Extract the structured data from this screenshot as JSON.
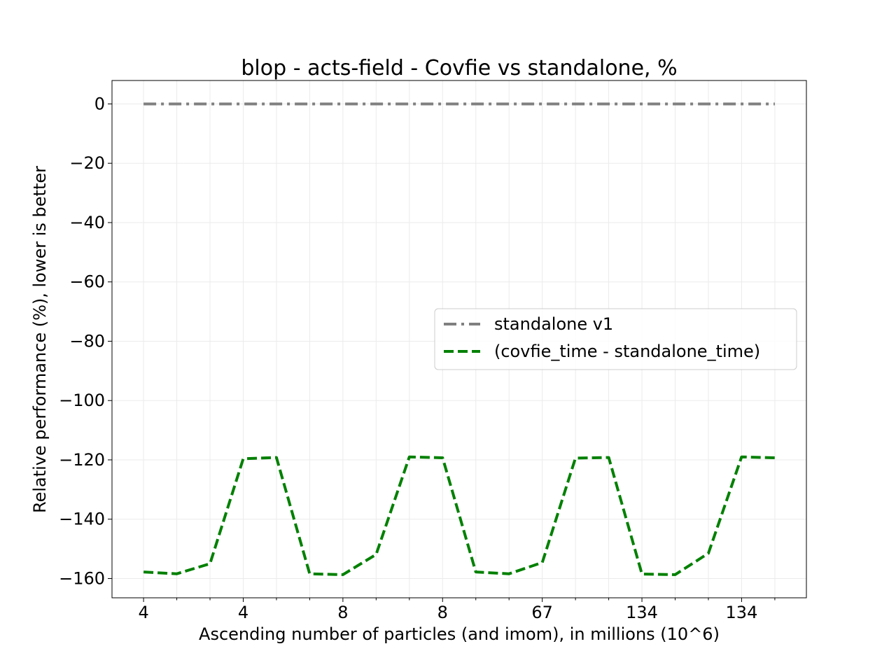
{
  "chart_data": {
    "type": "line",
    "title": "blop - acts-field - Covfie vs standalone, %",
    "xlabel": "Ascending number of particles (and imom), in millions (10^6)",
    "ylabel": "Relative performance (%), lower is better",
    "x_tick_labels": [
      "4",
      "4",
      "8",
      "8",
      "67",
      "134",
      "134"
    ],
    "x_tick_positions": [
      0,
      3,
      6,
      9,
      12,
      15,
      18
    ],
    "x_minor_tick_positions": [
      1,
      2,
      4,
      5,
      7,
      8,
      10,
      11,
      13,
      14,
      16,
      17,
      19
    ],
    "xlim": [
      -0.95,
      19.95
    ],
    "y_ticks": [
      0,
      -20,
      -40,
      -60,
      -80,
      -100,
      -120,
      -140,
      -160
    ],
    "y_tick_labels": [
      "0",
      "−20",
      "−40",
      "−60",
      "−80",
      "−100",
      "−120",
      "−140",
      "−160"
    ],
    "ylim": [
      -166.5,
      7.9
    ],
    "grid": true,
    "legend_position": "center-right",
    "series": [
      {
        "name": "standalone v1",
        "color": "#808080",
        "style": "dashdot",
        "x": [
          0,
          1,
          2,
          3,
          4,
          5,
          6,
          7,
          8,
          9,
          10,
          11,
          12,
          13,
          14,
          15,
          16,
          17,
          18,
          19
        ],
        "values": [
          0,
          0,
          0,
          0,
          0,
          0,
          0,
          0,
          0,
          0,
          0,
          0,
          0,
          0,
          0,
          0,
          0,
          0,
          0,
          0
        ]
      },
      {
        "name": "(covfie_time - standalone_time)",
        "color": "#008000",
        "style": "dashed",
        "x": [
          0,
          1,
          2,
          3,
          4,
          5,
          6,
          7,
          8,
          9,
          10,
          11,
          12,
          13,
          14,
          15,
          16,
          17,
          18,
          19
        ],
        "values": [
          -157.8,
          -158.4,
          -155.0,
          -119.6,
          -119.2,
          -158.4,
          -158.7,
          -151.9,
          -119.0,
          -119.3,
          -157.8,
          -158.4,
          -154.6,
          -119.4,
          -119.2,
          -158.5,
          -158.7,
          -151.5,
          -119.0,
          -119.3
        ]
      }
    ]
  }
}
